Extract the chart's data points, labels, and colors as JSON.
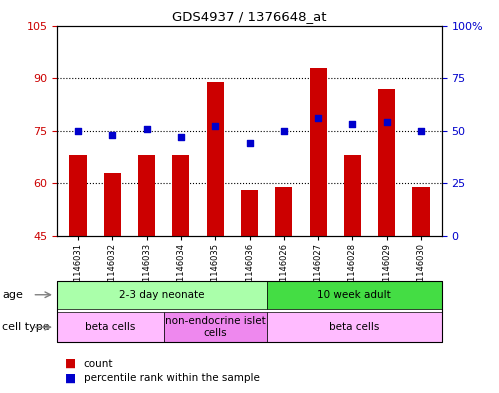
{
  "title": "GDS4937 / 1376648_at",
  "samples": [
    "GSM1146031",
    "GSM1146032",
    "GSM1146033",
    "GSM1146034",
    "GSM1146035",
    "GSM1146036",
    "GSM1146026",
    "GSM1146027",
    "GSM1146028",
    "GSM1146029",
    "GSM1146030"
  ],
  "counts": [
    68,
    63,
    68,
    68,
    89,
    58,
    59,
    93,
    68,
    87,
    59
  ],
  "percentiles": [
    50,
    48,
    51,
    47,
    52,
    44,
    50,
    56,
    53,
    54,
    50
  ],
  "ylim_left": [
    45,
    105
  ],
  "ylim_right": [
    0,
    100
  ],
  "yticks_left": [
    45,
    60,
    75,
    90,
    105
  ],
  "yticks_right": [
    0,
    25,
    50,
    75,
    100
  ],
  "ytick_labels_left": [
    "45",
    "60",
    "75",
    "90",
    "105"
  ],
  "ytick_labels_right": [
    "0",
    "25",
    "50",
    "75",
    "100%"
  ],
  "bar_color": "#cc0000",
  "dot_color": "#0000cc",
  "grid_color": "#000000",
  "bg_plot": "#ffffff",
  "age_groups": [
    {
      "label": "2-3 day neonate",
      "start": 0,
      "end": 6,
      "color": "#aaffaa"
    },
    {
      "label": "10 week adult",
      "start": 6,
      "end": 11,
      "color": "#44dd44"
    }
  ],
  "cell_type_groups": [
    {
      "label": "beta cells",
      "start": 0,
      "end": 3,
      "color": "#ffbbff"
    },
    {
      "label": "non-endocrine islet\ncells",
      "start": 3,
      "end": 6,
      "color": "#ee88ee"
    },
    {
      "label": "beta cells",
      "start": 6,
      "end": 11,
      "color": "#ffbbff"
    }
  ],
  "legend_items": [
    "count",
    "percentile rank within the sample"
  ],
  "left_axis_color": "#cc0000",
  "right_axis_color": "#0000cc",
  "bar_width": 0.5
}
